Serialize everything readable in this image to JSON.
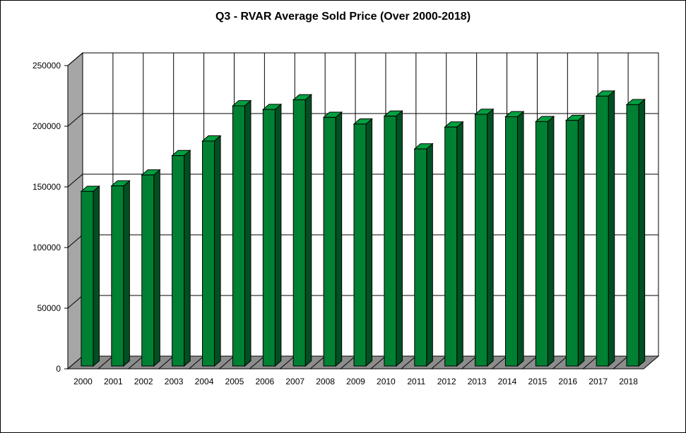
{
  "chart_data": {
    "type": "bar",
    "title": "Q3 - RVAR Average Sold Price (Over 2000-2018)",
    "xlabel": "",
    "ylabel": "",
    "categories": [
      "2000",
      "2001",
      "2002",
      "2003",
      "2004",
      "2005",
      "2006",
      "2007",
      "2008",
      "2009",
      "2010",
      "2011",
      "2012",
      "2013",
      "2014",
      "2015",
      "2016",
      "2017",
      "2018"
    ],
    "values": [
      144000,
      148500,
      157500,
      173500,
      185500,
      214500,
      211500,
      219500,
      205000,
      199500,
      206000,
      179000,
      197000,
      207500,
      205500,
      201500,
      202500,
      222500,
      215500
    ],
    "ylim": [
      0,
      250000
    ],
    "yticks": [
      0,
      50000,
      100000,
      150000,
      200000,
      250000
    ],
    "ytick_labels": [
      "0",
      "50000",
      "100000",
      "150000",
      "200000",
      "250000"
    ],
    "grid": true,
    "style": "3d-column",
    "colors": {
      "bar_front": "#008033",
      "bar_side": "#005022",
      "bar_top": "#00a040",
      "wall": "#ffffff",
      "side_wall": "#a6a6a6",
      "floor": "#8c8c8c",
      "gridline": "#000000"
    }
  }
}
